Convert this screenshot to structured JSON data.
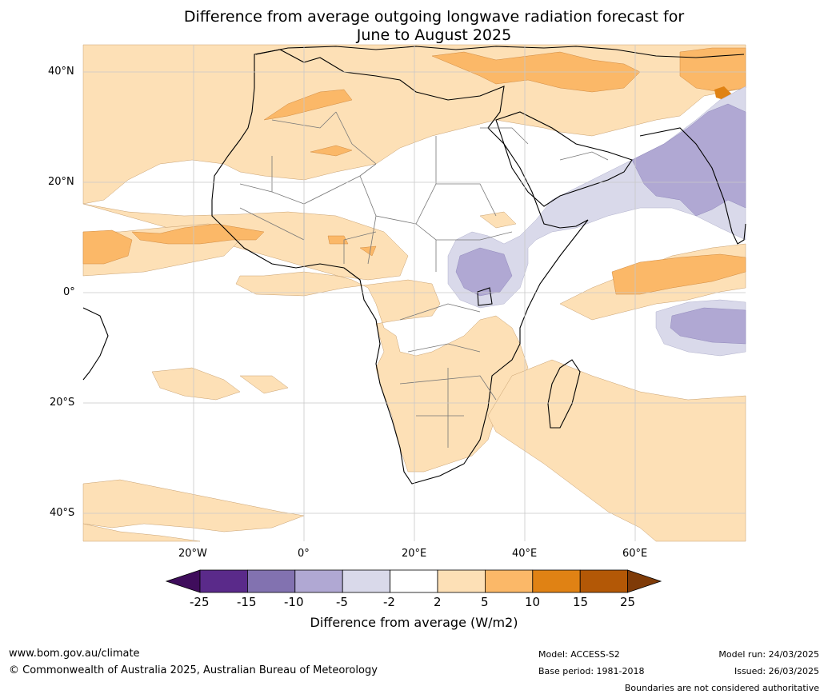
{
  "title_line1": "Difference from average outgoing longwave radiation forecast for",
  "title_line2": "June to August 2025",
  "lat_labels": [
    "40°N",
    "20°N",
    "0°",
    "20°S",
    "40°S"
  ],
  "lon_labels": [
    "20°W",
    "0°",
    "20°E",
    "40°E",
    "60°E"
  ],
  "colorbar": {
    "levels": [
      "-25",
      "-15",
      "-10",
      "-5",
      "-2",
      "2",
      "5",
      "10",
      "15",
      "25"
    ],
    "colors": [
      "#3f0d5c",
      "#5a2a8a",
      "#8272b0",
      "#b0a8d3",
      "#d9d9ea",
      "#ffffff",
      "#fde0b6",
      "#fbb868",
      "#e08214",
      "#b35806",
      "#7f3b08"
    ],
    "label": "Difference from average (W/m2)"
  },
  "footer": {
    "url": "www.bom.gov.au/climate",
    "copyright": "© Commonwealth of Australia 2025, Australian Bureau of Meteorology",
    "model": "Model: ACCESS-S2",
    "base_period": "Base period: 1981-2018",
    "model_run": "Model run: 24/03/2025",
    "issued": "Issued: 26/03/2025",
    "disclaimer": "Boundaries are not considered authoritative"
  }
}
